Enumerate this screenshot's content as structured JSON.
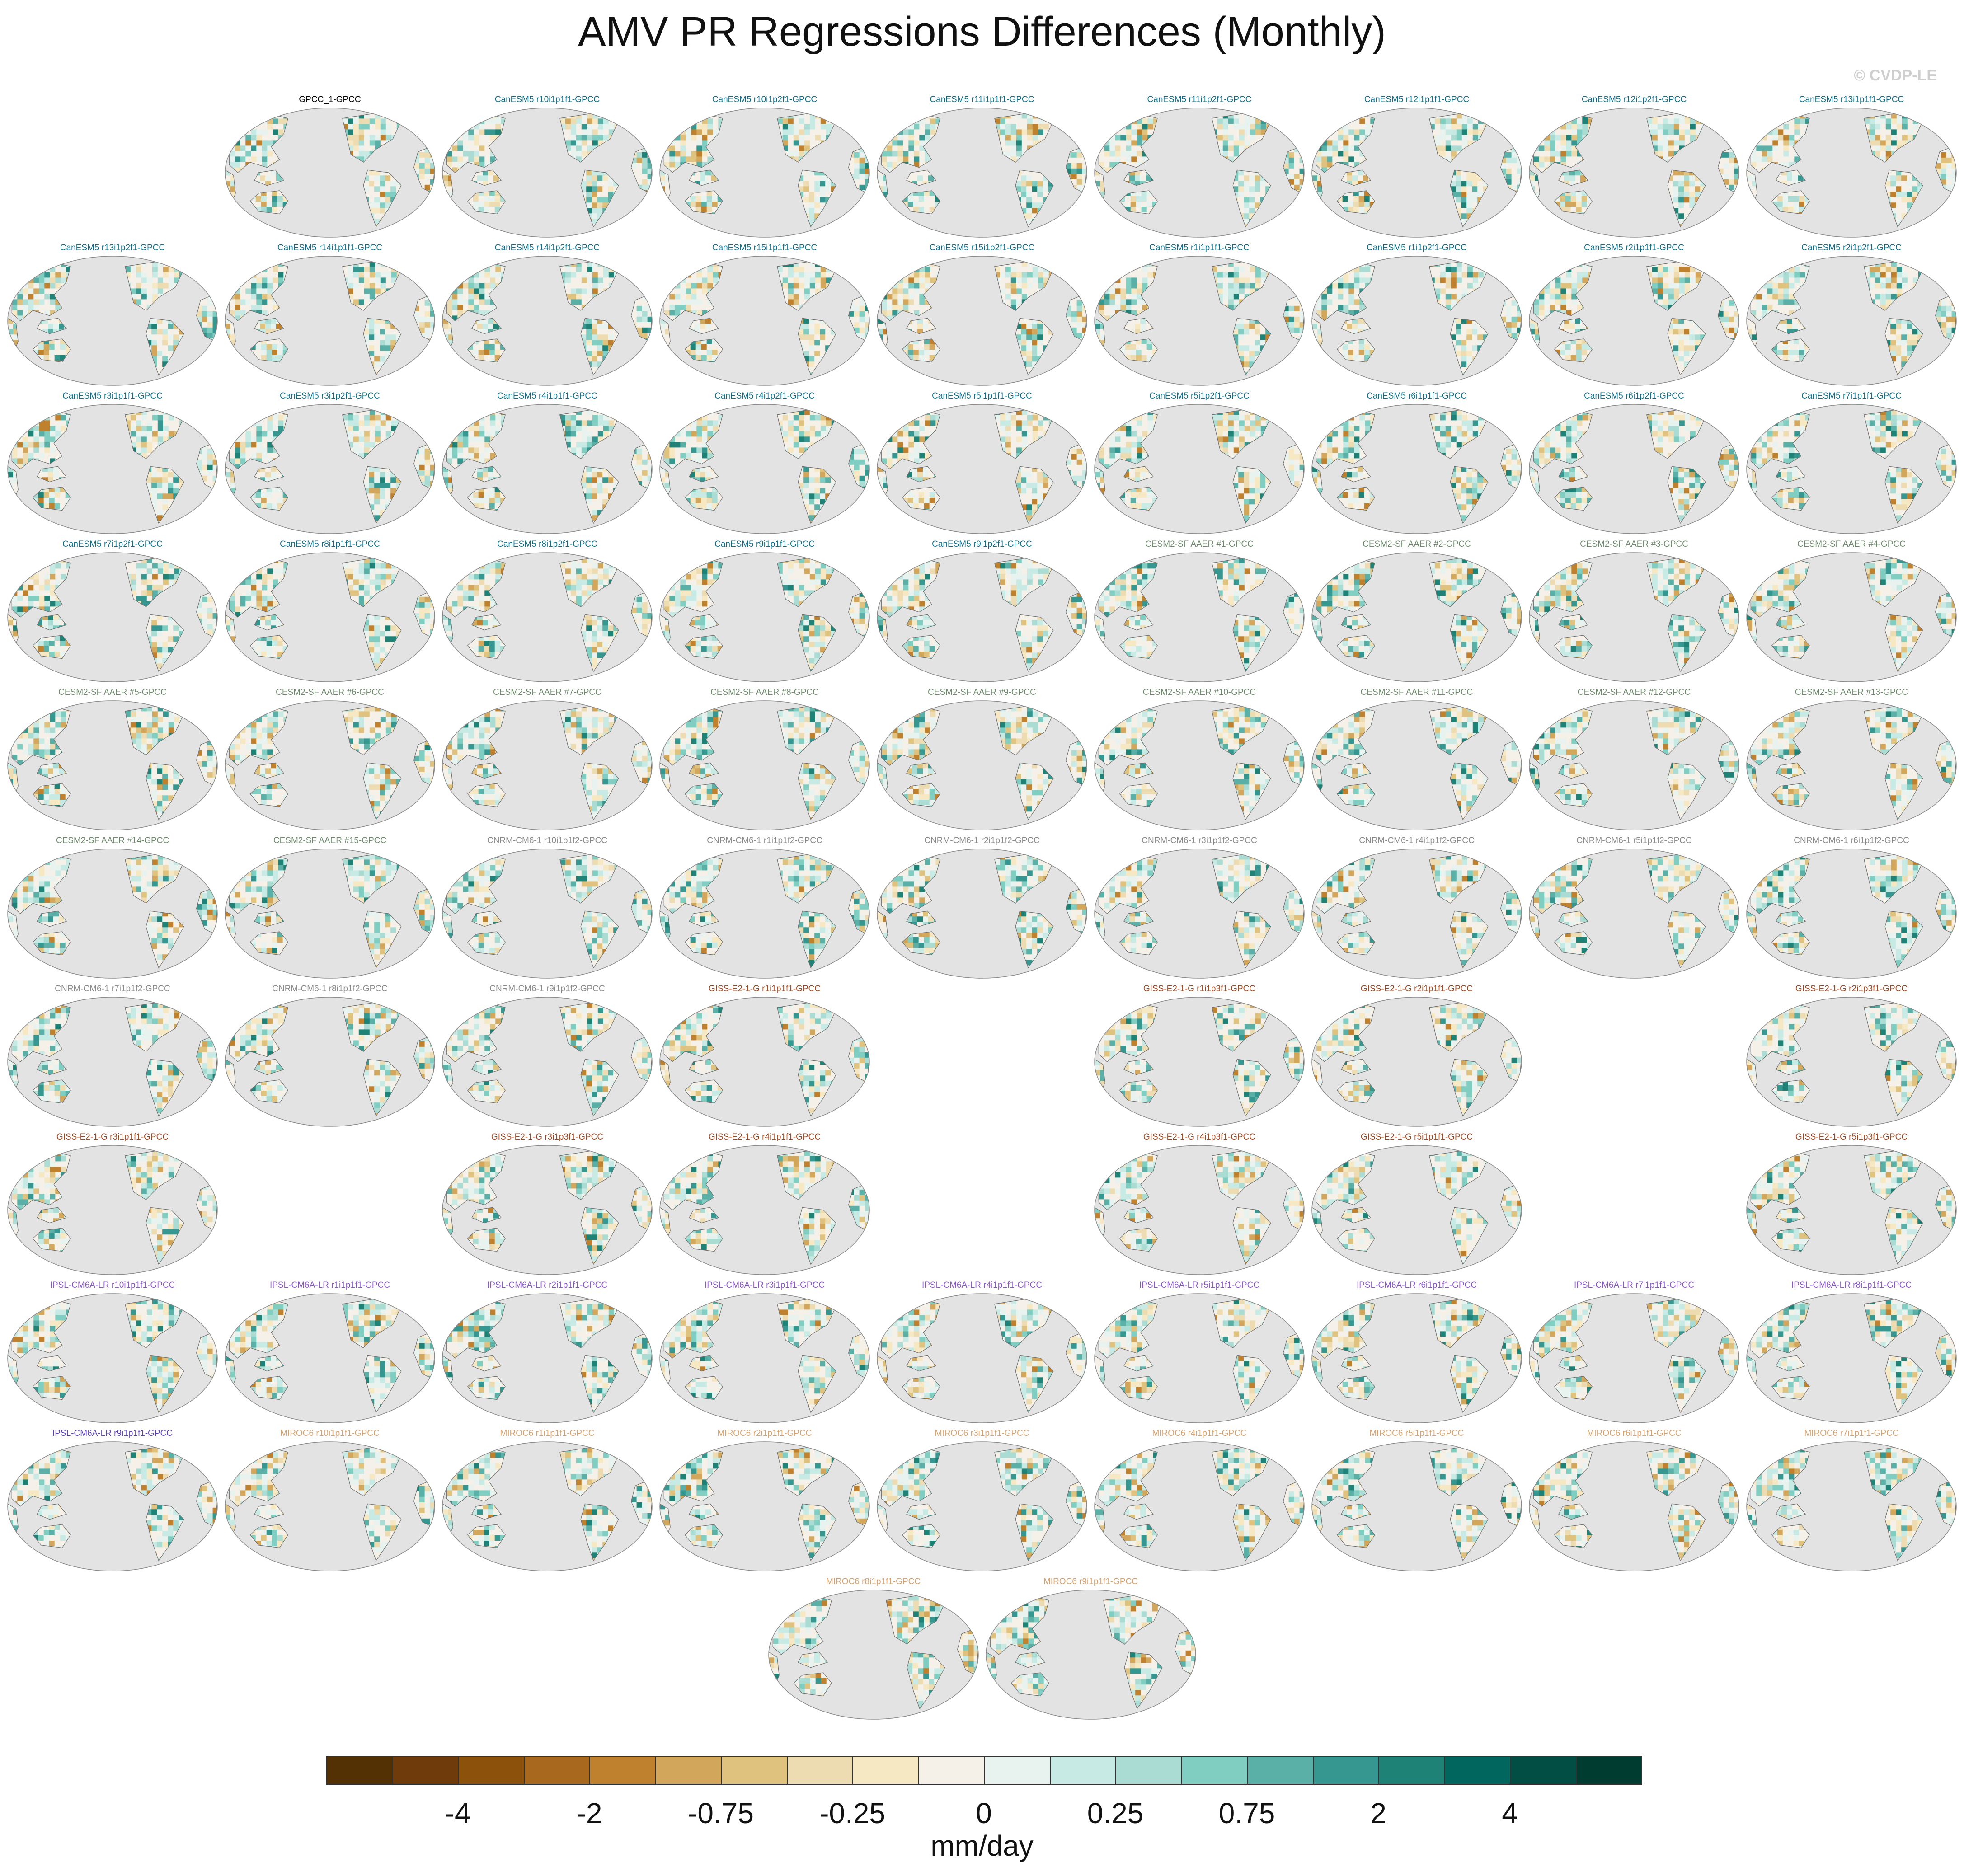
{
  "chart_data": {
    "type": "heatmap",
    "title": "AMV PR Regressions Differences (Monthly)",
    "watermark": "© CVDP-LE",
    "units": "mm/day",
    "colorbar": {
      "tick_labels": [
        "-4",
        "-2",
        "-0.75",
        "-0.25",
        "0",
        "0.25",
        "0.75",
        "2",
        "4"
      ],
      "colors": [
        "#543005",
        "#6f3b0a",
        "#8c510a",
        "#a8681e",
        "#bf812d",
        "#d2a65b",
        "#dfc27d",
        "#eddcb1",
        "#f6e8c3",
        "#f5f1e9",
        "#e8f2ef",
        "#c7eae5",
        "#abdcd3",
        "#80cdc1",
        "#5ab0a6",
        "#35978f",
        "#1f8276",
        "#01665e",
        "#024e45",
        "#003c30"
      ]
    },
    "panels": [
      {
        "row": 0,
        "col": 1,
        "title": "GPCC_1-GPCC",
        "color": "#000000"
      },
      {
        "row": 0,
        "col": 2,
        "title": "CanESM5 r10i1p1f1-GPCC",
        "color": "#0d6e8a"
      },
      {
        "row": 0,
        "col": 3,
        "title": "CanESM5 r10i1p2f1-GPCC",
        "color": "#0d6e8a"
      },
      {
        "row": 0,
        "col": 4,
        "title": "CanESM5 r11i1p1f1-GPCC",
        "color": "#0d6e8a"
      },
      {
        "row": 0,
        "col": 5,
        "title": "CanESM5 r11i1p2f1-GPCC",
        "color": "#0d6e8a"
      },
      {
        "row": 0,
        "col": 6,
        "title": "CanESM5 r12i1p1f1-GPCC",
        "color": "#0d6e8a"
      },
      {
        "row": 0,
        "col": 7,
        "title": "CanESM5 r12i1p2f1-GPCC",
        "color": "#0d6e8a"
      },
      {
        "row": 0,
        "col": 8,
        "title": "CanESM5 r13i1p1f1-GPCC",
        "color": "#0d6e8a"
      },
      {
        "row": 1,
        "col": 0,
        "title": "CanESM5 r13i1p2f1-GPCC",
        "color": "#0d6e8a"
      },
      {
        "row": 1,
        "col": 1,
        "title": "CanESM5 r14i1p1f1-GPCC",
        "color": "#0d6e8a"
      },
      {
        "row": 1,
        "col": 2,
        "title": "CanESM5 r14i1p2f1-GPCC",
        "color": "#0d6e8a"
      },
      {
        "row": 1,
        "col": 3,
        "title": "CanESM5 r15i1p1f1-GPCC",
        "color": "#0d6e8a"
      },
      {
        "row": 1,
        "col": 4,
        "title": "CanESM5 r15i1p2f1-GPCC",
        "color": "#0d6e8a"
      },
      {
        "row": 1,
        "col": 5,
        "title": "CanESM5 r1i1p1f1-GPCC",
        "color": "#0d6e8a"
      },
      {
        "row": 1,
        "col": 6,
        "title": "CanESM5 r1i1p2f1-GPCC",
        "color": "#0d6e8a"
      },
      {
        "row": 1,
        "col": 7,
        "title": "CanESM5 r2i1p1f1-GPCC",
        "color": "#0d6e8a"
      },
      {
        "row": 1,
        "col": 8,
        "title": "CanESM5 r2i1p2f1-GPCC",
        "color": "#0d6e8a"
      },
      {
        "row": 2,
        "col": 0,
        "title": "CanESM5 r3i1p1f1-GPCC",
        "color": "#0d6e8a"
      },
      {
        "row": 2,
        "col": 1,
        "title": "CanESM5 r3i1p2f1-GPCC",
        "color": "#0d6e8a"
      },
      {
        "row": 2,
        "col": 2,
        "title": "CanESM5 r4i1p1f1-GPCC",
        "color": "#0d6e8a"
      },
      {
        "row": 2,
        "col": 3,
        "title": "CanESM5 r4i1p2f1-GPCC",
        "color": "#0d6e8a"
      },
      {
        "row": 2,
        "col": 4,
        "title": "CanESM5 r5i1p1f1-GPCC",
        "color": "#0d6e8a"
      },
      {
        "row": 2,
        "col": 5,
        "title": "CanESM5 r5i1p2f1-GPCC",
        "color": "#0d6e8a"
      },
      {
        "row": 2,
        "col": 6,
        "title": "CanESM5 r6i1p1f1-GPCC",
        "color": "#0d6e8a"
      },
      {
        "row": 2,
        "col": 7,
        "title": "CanESM5 r6i1p2f1-GPCC",
        "color": "#0d6e8a"
      },
      {
        "row": 2,
        "col": 8,
        "title": "CanESM5 r7i1p1f1-GPCC",
        "color": "#0d6e8a"
      },
      {
        "row": 3,
        "col": 0,
        "title": "CanESM5 r7i1p2f1-GPCC",
        "color": "#0d6e8a"
      },
      {
        "row": 3,
        "col": 1,
        "title": "CanESM5 r8i1p1f1-GPCC",
        "color": "#0d6e8a"
      },
      {
        "row": 3,
        "col": 2,
        "title": "CanESM5 r8i1p2f1-GPCC",
        "color": "#0d6e8a"
      },
      {
        "row": 3,
        "col": 3,
        "title": "CanESM5 r9i1p1f1-GPCC",
        "color": "#0d6e8a"
      },
      {
        "row": 3,
        "col": 4,
        "title": "CanESM5 r9i1p2f1-GPCC",
        "color": "#0d6e8a"
      },
      {
        "row": 3,
        "col": 5,
        "title": "CESM2-SF AAER #1-GPCC",
        "color": "#6c8a6a"
      },
      {
        "row": 3,
        "col": 6,
        "title": "CESM2-SF AAER #2-GPCC",
        "color": "#6c8a6a"
      },
      {
        "row": 3,
        "col": 7,
        "title": "CESM2-SF AAER #3-GPCC",
        "color": "#6c8a6a"
      },
      {
        "row": 3,
        "col": 8,
        "title": "CESM2-SF AAER #4-GPCC",
        "color": "#6c8a6a"
      },
      {
        "row": 4,
        "col": 0,
        "title": "CESM2-SF AAER #5-GPCC",
        "color": "#6c8a6a"
      },
      {
        "row": 4,
        "col": 1,
        "title": "CESM2-SF AAER #6-GPCC",
        "color": "#6c8a6a"
      },
      {
        "row": 4,
        "col": 2,
        "title": "CESM2-SF AAER #7-GPCC",
        "color": "#6c8a6a"
      },
      {
        "row": 4,
        "col": 3,
        "title": "CESM2-SF AAER #8-GPCC",
        "color": "#6c8a6a"
      },
      {
        "row": 4,
        "col": 4,
        "title": "CESM2-SF AAER #9-GPCC",
        "color": "#6c8a6a"
      },
      {
        "row": 4,
        "col": 5,
        "title": "CESM2-SF AAER #10-GPCC",
        "color": "#6c8a6a"
      },
      {
        "row": 4,
        "col": 6,
        "title": "CESM2-SF AAER #11-GPCC",
        "color": "#6c8a6a"
      },
      {
        "row": 4,
        "col": 7,
        "title": "CESM2-SF AAER #12-GPCC",
        "color": "#6c8a6a"
      },
      {
        "row": 4,
        "col": 8,
        "title": "CESM2-SF AAER #13-GPCC",
        "color": "#6c8a6a"
      },
      {
        "row": 5,
        "col": 0,
        "title": "CESM2-SF AAER #14-GPCC",
        "color": "#6c8a6a"
      },
      {
        "row": 5,
        "col": 1,
        "title": "CESM2-SF AAER #15-GPCC",
        "color": "#6c8a6a"
      },
      {
        "row": 5,
        "col": 2,
        "title": "CNRM-CM6-1 r10i1p1f2-GPCC",
        "color": "#8a8a8a"
      },
      {
        "row": 5,
        "col": 3,
        "title": "CNRM-CM6-1 r1i1p1f2-GPCC",
        "color": "#8a8a8a"
      },
      {
        "row": 5,
        "col": 4,
        "title": "CNRM-CM6-1 r2i1p1f2-GPCC",
        "color": "#8a8a8a"
      },
      {
        "row": 5,
        "col": 5,
        "title": "CNRM-CM6-1 r3i1p1f2-GPCC",
        "color": "#8a8a8a"
      },
      {
        "row": 5,
        "col": 6,
        "title": "CNRM-CM6-1 r4i1p1f2-GPCC",
        "color": "#8a8a8a"
      },
      {
        "row": 5,
        "col": 7,
        "title": "CNRM-CM6-1 r5i1p1f2-GPCC",
        "color": "#8a8a8a"
      },
      {
        "row": 5,
        "col": 8,
        "title": "CNRM-CM6-1 r6i1p1f2-GPCC",
        "color": "#8a8a8a"
      },
      {
        "row": 6,
        "col": 0,
        "title": "CNRM-CM6-1 r7i1p1f2-GPCC",
        "color": "#8a8a8a"
      },
      {
        "row": 6,
        "col": 1,
        "title": "CNRM-CM6-1 r8i1p1f2-GPCC",
        "color": "#8a8a8a"
      },
      {
        "row": 6,
        "col": 2,
        "title": "CNRM-CM6-1 r9i1p1f2-GPCC",
        "color": "#8a8a8a"
      },
      {
        "row": 6,
        "col": 3,
        "title": "GISS-E2-1-G r1i1p1f1-GPCC",
        "color": "#a0461e"
      },
      {
        "row": 6,
        "col": 5,
        "title": "GISS-E2-1-G r1i1p3f1-GPCC",
        "color": "#a0461e"
      },
      {
        "row": 6,
        "col": 6,
        "title": "GISS-E2-1-G r2i1p1f1-GPCC",
        "color": "#a0461e"
      },
      {
        "row": 6,
        "col": 8,
        "title": "GISS-E2-1-G r2i1p3f1-GPCC",
        "color": "#a0461e"
      },
      {
        "row": 7,
        "col": 0,
        "title": "GISS-E2-1-G r3i1p1f1-GPCC",
        "color": "#a0461e"
      },
      {
        "row": 7,
        "col": 2,
        "title": "GISS-E2-1-G r3i1p3f1-GPCC",
        "color": "#a0461e"
      },
      {
        "row": 7,
        "col": 3,
        "title": "GISS-E2-1-G r4i1p1f1-GPCC",
        "color": "#a0461e"
      },
      {
        "row": 7,
        "col": 5,
        "title": "GISS-E2-1-G r4i1p3f1-GPCC",
        "color": "#a0461e"
      },
      {
        "row": 7,
        "col": 6,
        "title": "GISS-E2-1-G r5i1p1f1-GPCC",
        "color": "#a0461e"
      },
      {
        "row": 7,
        "col": 8,
        "title": "GISS-E2-1-G r5i1p3f1-GPCC",
        "color": "#a0461e"
      },
      {
        "row": 8,
        "col": 0,
        "title": "IPSL-CM6A-LR r10i1p1f1-GPCC",
        "color": "#8a55c8"
      },
      {
        "row": 8,
        "col": 1,
        "title": "IPSL-CM6A-LR r1i1p1f1-GPCC",
        "color": "#8a55c8"
      },
      {
        "row": 8,
        "col": 2,
        "title": "IPSL-CM6A-LR r2i1p1f1-GPCC",
        "color": "#8a55c8"
      },
      {
        "row": 8,
        "col": 3,
        "title": "IPSL-CM6A-LR r3i1p1f1-GPCC",
        "color": "#8a55c8"
      },
      {
        "row": 8,
        "col": 4,
        "title": "IPSL-CM6A-LR r4i1p1f1-GPCC",
        "color": "#8a55c8"
      },
      {
        "row": 8,
        "col": 5,
        "title": "IPSL-CM6A-LR r5i1p1f1-GPCC",
        "color": "#8a55c8"
      },
      {
        "row": 8,
        "col": 6,
        "title": "IPSL-CM6A-LR r6i1p1f1-GPCC",
        "color": "#8a55c8"
      },
      {
        "row": 8,
        "col": 7,
        "title": "IPSL-CM6A-LR r7i1p1f1-GPCC",
        "color": "#8a55c8"
      },
      {
        "row": 8,
        "col": 8,
        "title": "IPSL-CM6A-LR r8i1p1f1-GPCC",
        "color": "#8a55c8"
      },
      {
        "row": 9,
        "col": 0,
        "title": "IPSL-CM6A-LR r9i1p1f1-GPCC",
        "color": "#5a3fb8"
      },
      {
        "row": 9,
        "col": 1,
        "title": "MIROC6 r10i1p1f1-GPCC",
        "color": "#d8a06a"
      },
      {
        "row": 9,
        "col": 2,
        "title": "MIROC6 r1i1p1f1-GPCC",
        "color": "#d8a06a"
      },
      {
        "row": 9,
        "col": 3,
        "title": "MIROC6 r2i1p1f1-GPCC",
        "color": "#d8a06a"
      },
      {
        "row": 9,
        "col": 4,
        "title": "MIROC6 r3i1p1f1-GPCC",
        "color": "#d8a06a"
      },
      {
        "row": 9,
        "col": 5,
        "title": "MIROC6 r4i1p1f1-GPCC",
        "color": "#d8a06a"
      },
      {
        "row": 9,
        "col": 6,
        "title": "MIROC6 r5i1p1f1-GPCC",
        "color": "#d8a06a"
      },
      {
        "row": 9,
        "col": 7,
        "title": "MIROC6 r6i1p1f1-GPCC",
        "color": "#d8a06a"
      },
      {
        "row": 9,
        "col": 8,
        "title": "MIROC6 r7i1p1f1-GPCC",
        "color": "#d8a06a"
      },
      {
        "row": 10,
        "col": 3.5,
        "title": "MIROC6 r8i1p1f1-GPCC",
        "color": "#d8a06a"
      },
      {
        "row": 10,
        "col": 4.5,
        "title": "MIROC6 r9i1p1f1-GPCC",
        "color": "#d8a06a"
      }
    ]
  }
}
